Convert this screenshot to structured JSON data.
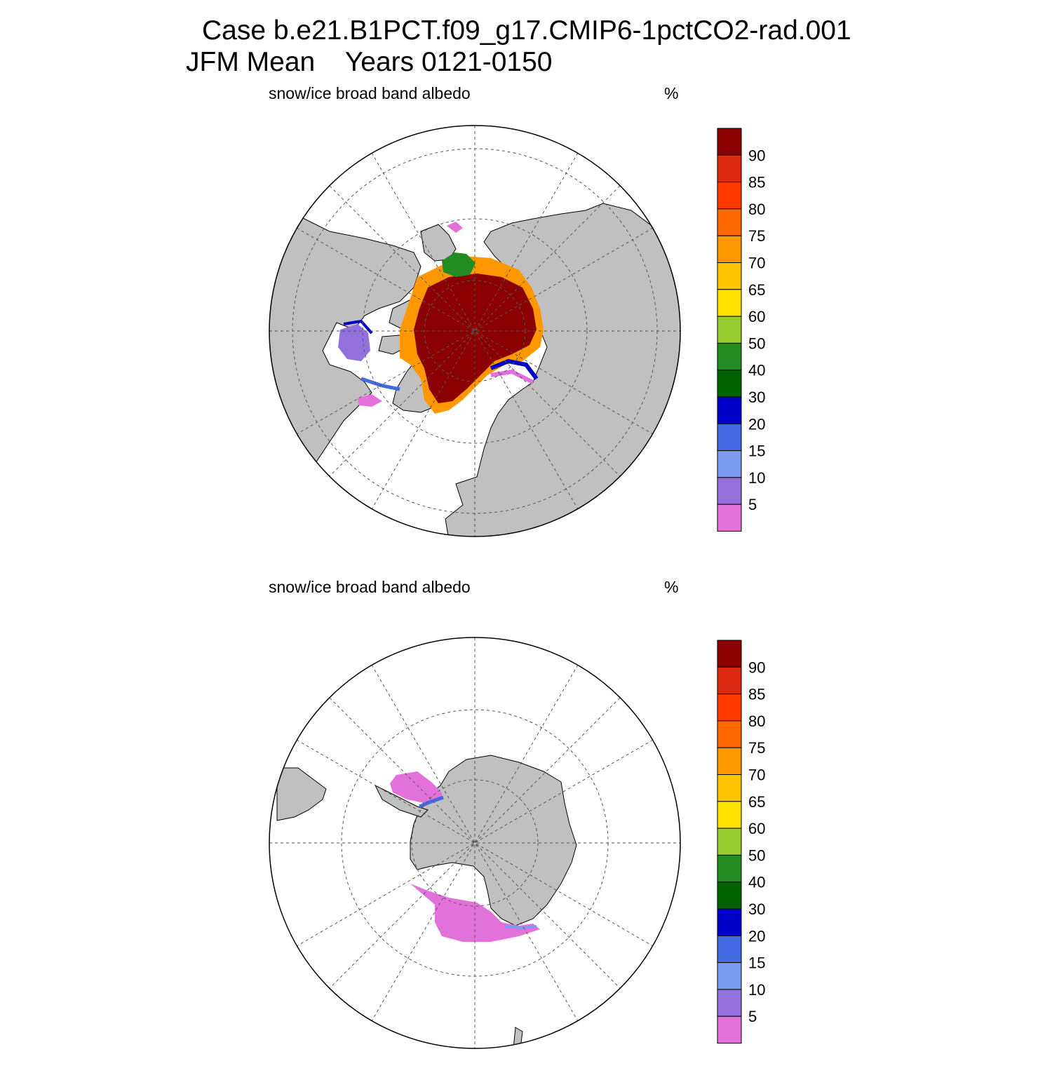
{
  "title": {
    "line1": "Case b.e21.B1PCT.f09_g17.CMIP6-1pctCO2-rad.001",
    "line2": "JFM Mean    Years 0121-0150"
  },
  "panels": [
    {
      "id": "north",
      "hemisphere": "Northern Hemisphere (polar stereographic)",
      "variable_label": "snow/ice broad band albedo",
      "units_label": "%"
    },
    {
      "id": "south",
      "hemisphere": "Southern Hemisphere (polar stereographic)",
      "variable_label": "snow/ice broad band albedo",
      "units_label": "%"
    }
  ],
  "colorbar": {
    "levels": [
      "5",
      "10",
      "15",
      "20",
      "30",
      "40",
      "50",
      "60",
      "65",
      "70",
      "75",
      "80",
      "85",
      "90"
    ],
    "colors": [
      "#E371DB",
      "#9370DB",
      "#7B9CF0",
      "#4169E1",
      "#0000C8",
      "#006400",
      "#228B22",
      "#9ACD32",
      "#FFE200",
      "#FFC400",
      "#FF9800",
      "#FF6A00",
      "#FF3A00",
      "#DC2A10",
      "#8B0000"
    ]
  },
  "map_colors": {
    "land": "#C0C0C0",
    "ocean": "#FFFFFF",
    "high_albedo": "#8B0000",
    "low_albedo": "#E371DB",
    "grid": "#555555"
  }
}
